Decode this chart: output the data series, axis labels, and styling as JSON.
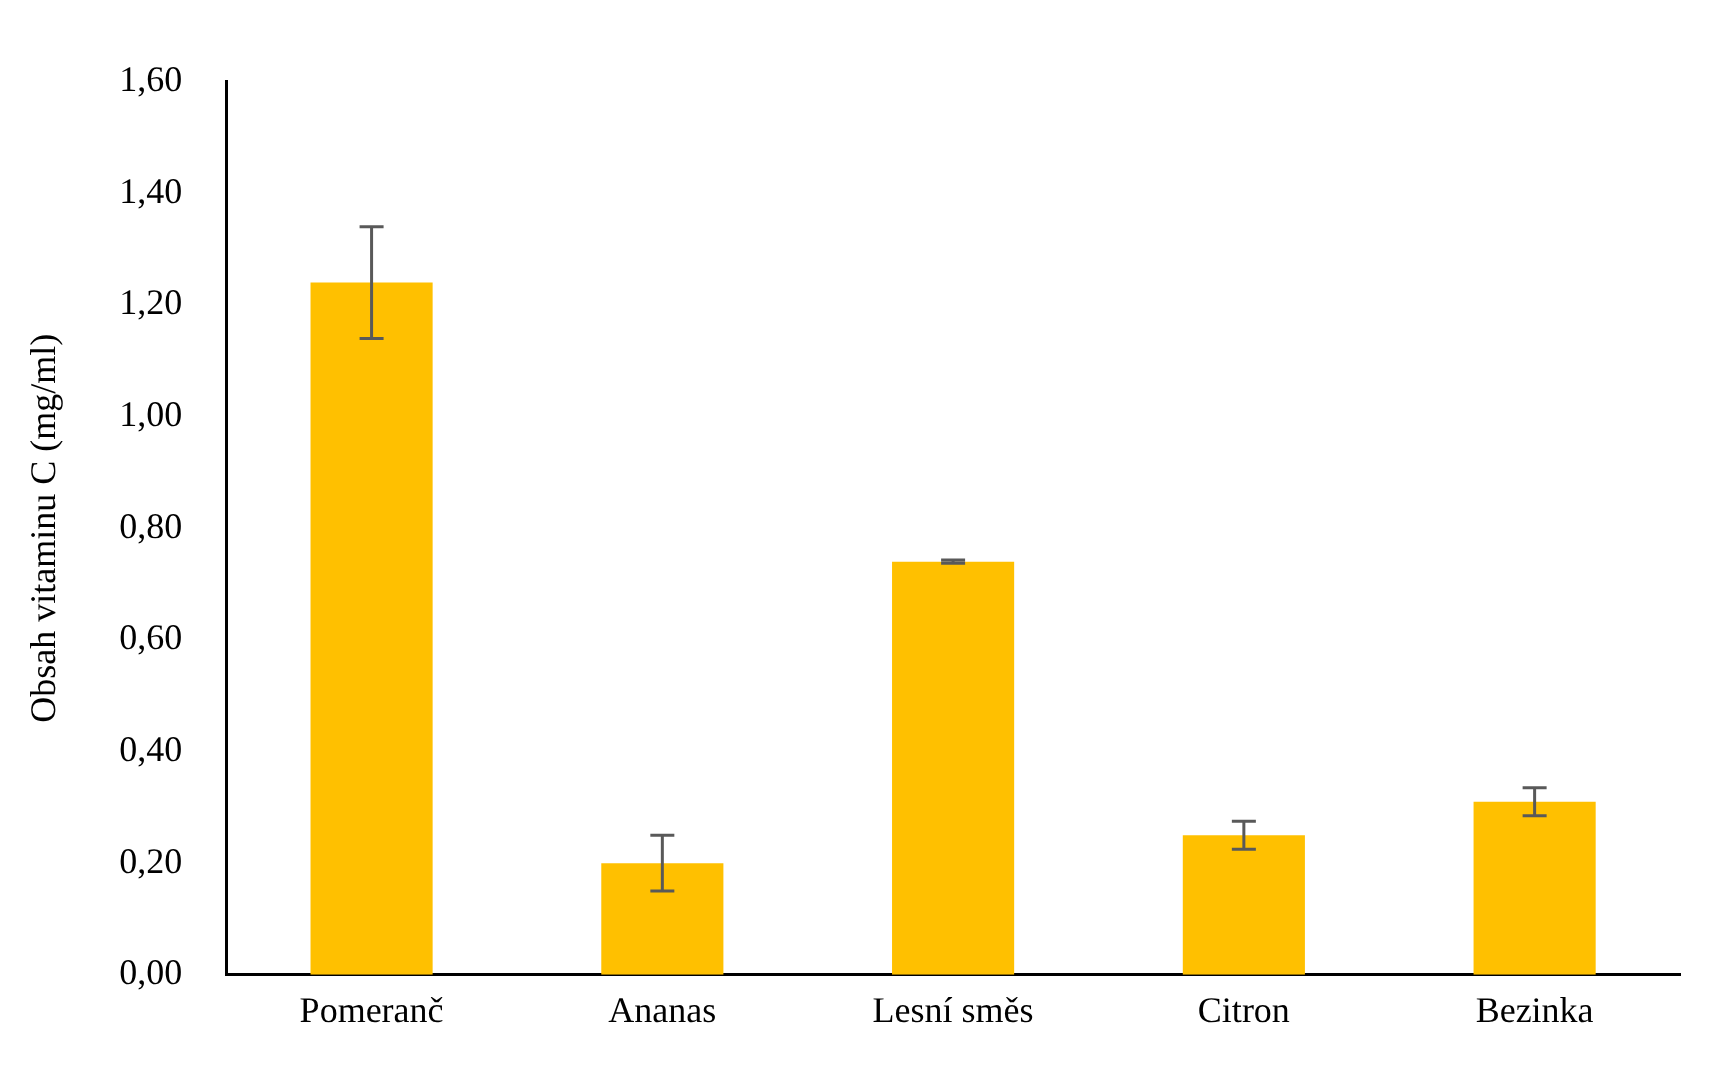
{
  "chart_data": {
    "type": "bar",
    "ylabel": "Obsah vitaminu C (mg/ml)",
    "categories": [
      "Pomeranč",
      "Ananas",
      "Lesní směs",
      "Citron",
      "Bezinka"
    ],
    "values": [
      1.24,
      0.2,
      0.74,
      0.25,
      0.31
    ],
    "errors": [
      0.1,
      0.05,
      0.003,
      0.025,
      0.025
    ],
    "color": "#ffc000",
    "ylim": [
      0,
      1.6
    ],
    "yticks": [
      {
        "value": 0,
        "label": "0,00"
      },
      {
        "value": 0.2,
        "label": "0,20"
      },
      {
        "value": 0.4,
        "label": "0,40"
      },
      {
        "value": 0.6,
        "label": "0,60"
      },
      {
        "value": 0.8,
        "label": "0,80"
      },
      {
        "value": 1,
        "label": "1,00"
      },
      {
        "value": 1.2,
        "label": "1,20"
      },
      {
        "value": 1.4,
        "label": "1,40"
      },
      {
        "value": 1.6,
        "label": "1,60"
      }
    ],
    "grid": false,
    "legend": false
  }
}
